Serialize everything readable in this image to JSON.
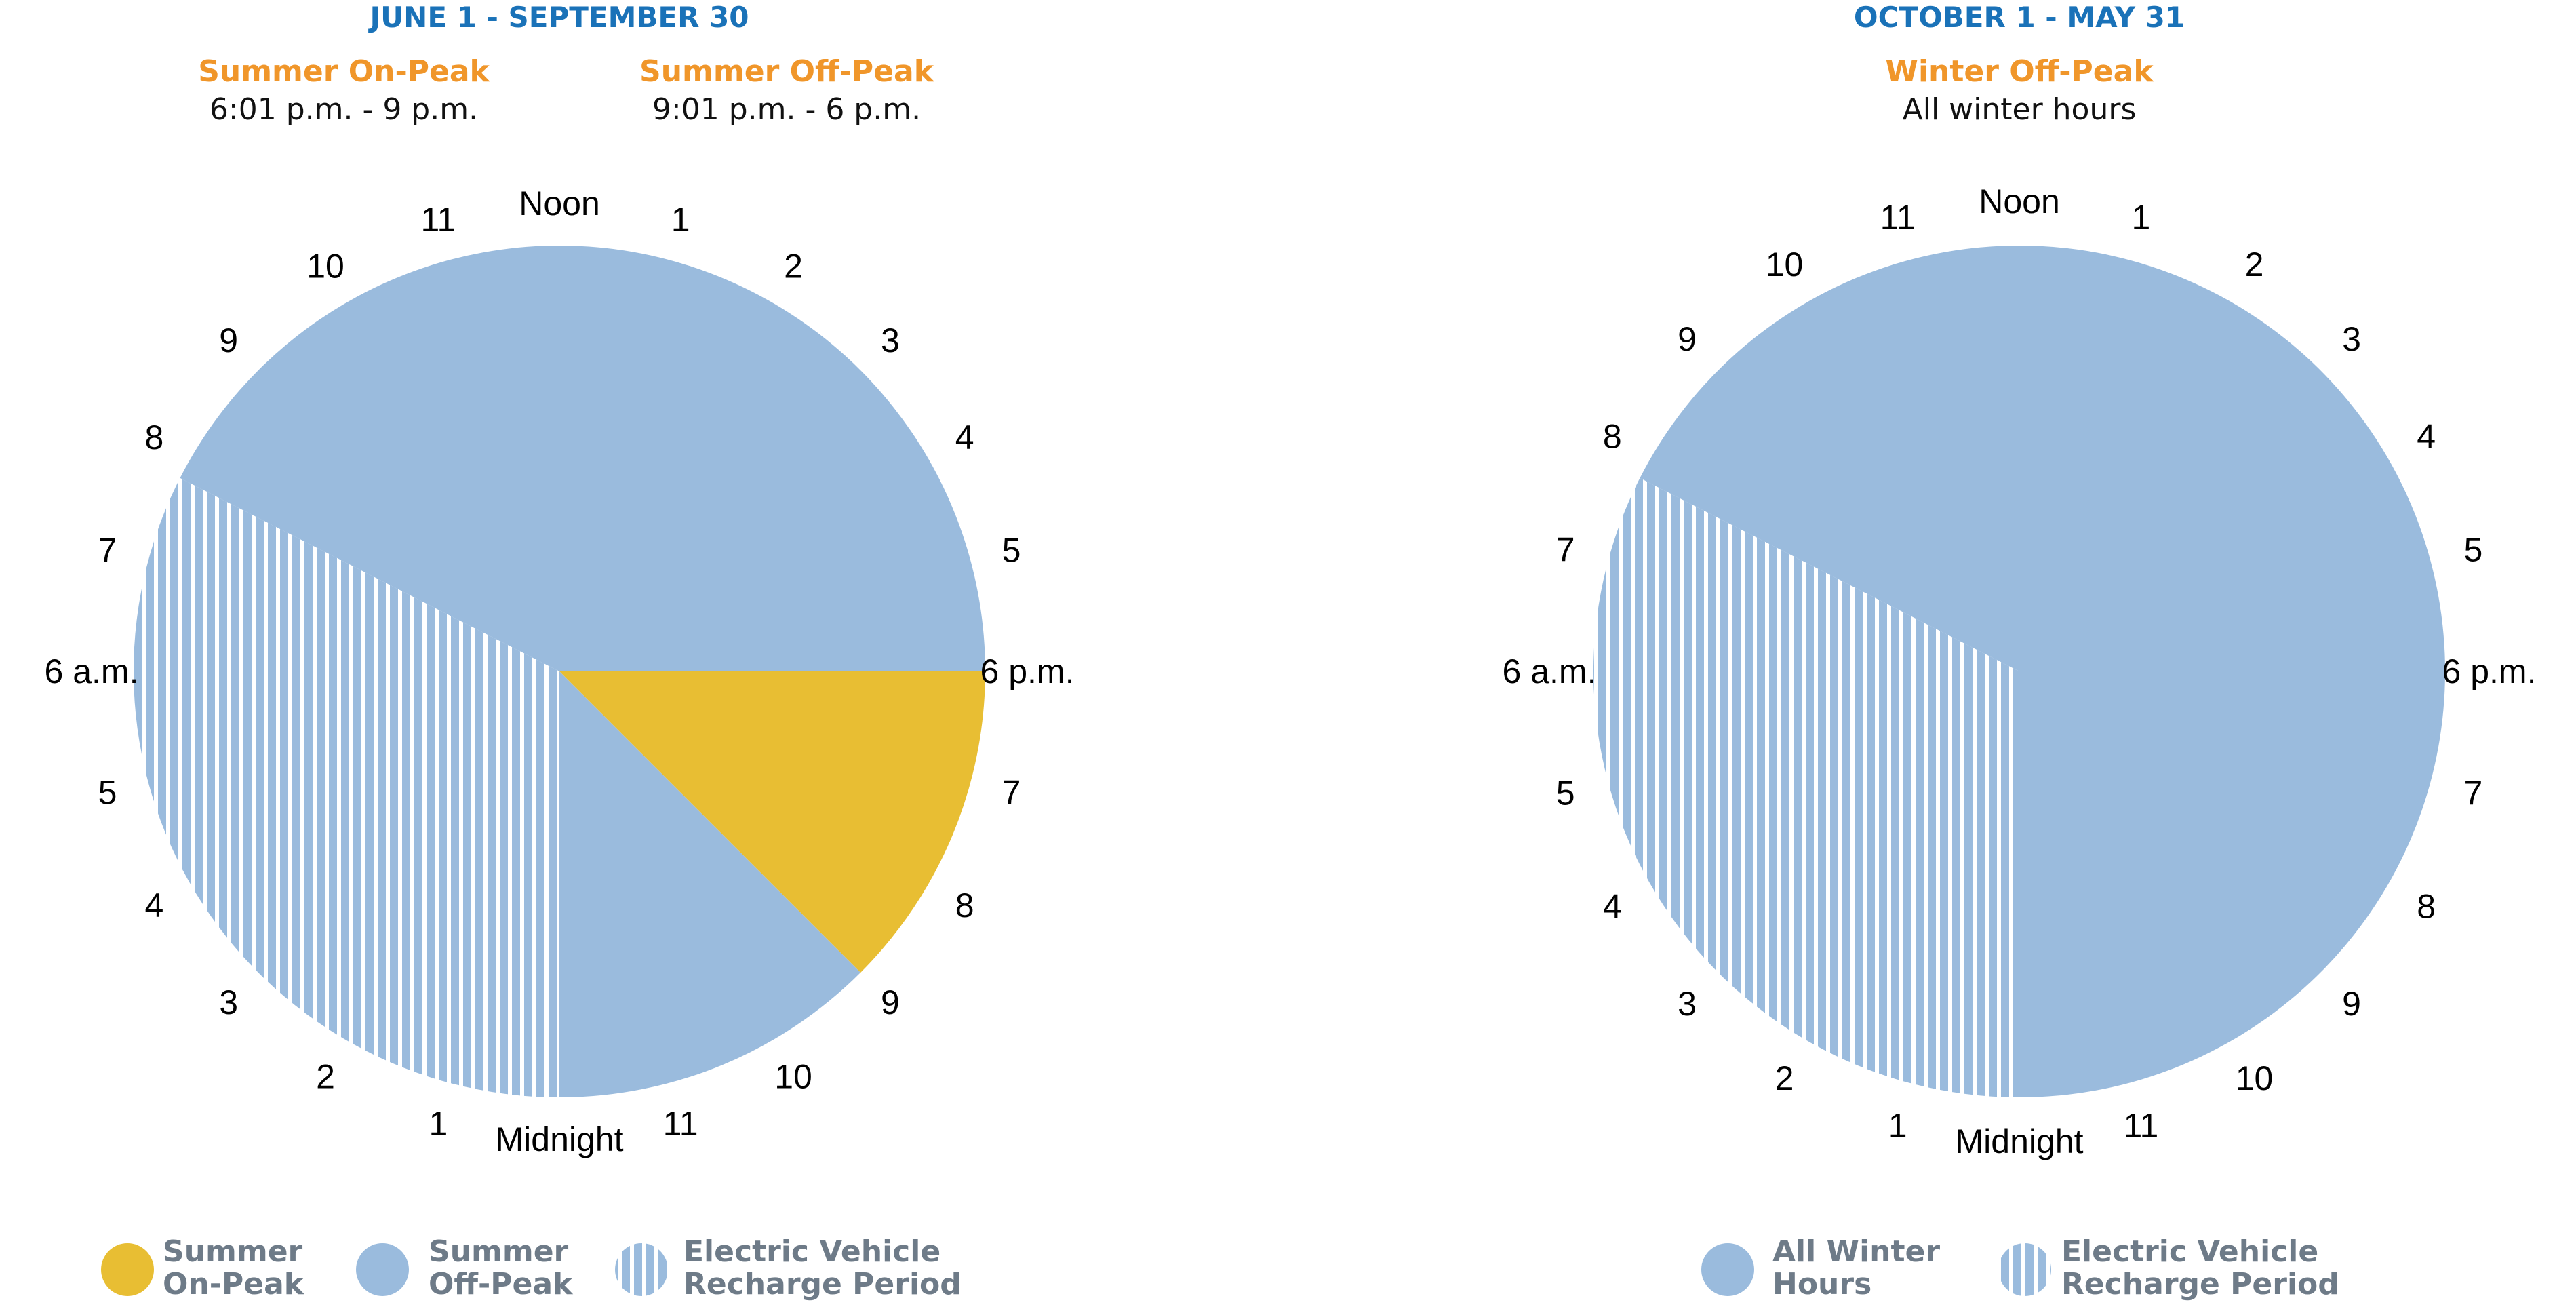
{
  "colors": {
    "on_peak": "#e8be33",
    "off_peak": "#9abbdd",
    "ev_stripe": "#ffffff",
    "season_title": "#1a72b8",
    "period_label": "#f0962a",
    "legend_text": "#6e7b88"
  },
  "clock_labels": [
    "Noon",
    "1",
    "2",
    "3",
    "4",
    "5",
    "6 p.m.",
    "7",
    "8",
    "9",
    "10",
    "11",
    "Midnight",
    "1",
    "2",
    "3",
    "4",
    "5",
    "6 a.m.",
    "7",
    "8",
    "9",
    "10",
    "11"
  ],
  "chart_data": [
    {
      "type": "pie",
      "title": "JUNE 1 - SEPTEMBER 30",
      "periods": [
        {
          "name": "Summer On-Peak",
          "hours": "6:01 p.m. - 9 p.m."
        },
        {
          "name": "Summer Off-Peak",
          "hours": "9:01 p.m. - 6 p.m."
        }
      ],
      "slices": [
        {
          "series": "Summer Off-Peak",
          "start_hour": 7.8,
          "end_hour": 18,
          "ev": false
        },
        {
          "series": "Summer On-Peak",
          "start_hour": 18,
          "end_hour": 21,
          "ev": false
        },
        {
          "series": "Summer Off-Peak",
          "start_hour": 21,
          "end_hour": 24,
          "ev": false
        },
        {
          "series": "Summer Off-Peak",
          "start_hour": 0,
          "end_hour": 7.8,
          "ev": true
        }
      ],
      "legend": [
        {
          "label_lines": [
            "Summer",
            "On-Peak"
          ],
          "swatch": "on_peak"
        },
        {
          "label_lines": [
            "Summer",
            "Off-Peak"
          ],
          "swatch": "off_peak"
        },
        {
          "label_lines": [
            "Electric Vehicle",
            "Recharge Period"
          ],
          "swatch": "ev"
        }
      ]
    },
    {
      "type": "pie",
      "title": "OCTOBER 1 - MAY 31",
      "periods": [
        {
          "name": "Winter Off-Peak",
          "hours": "All winter hours"
        }
      ],
      "slices": [
        {
          "series": "All Winter Hours",
          "start_hour": 7.8,
          "end_hour": 24,
          "ev": false
        },
        {
          "series": "All Winter Hours",
          "start_hour": 0,
          "end_hour": 7.8,
          "ev": true
        }
      ],
      "legend": [
        {
          "label_lines": [
            "All Winter",
            "Hours"
          ],
          "swatch": "off_peak"
        },
        {
          "label_lines": [
            "Electric Vehicle",
            "Recharge Period"
          ],
          "swatch": "ev"
        }
      ]
    }
  ]
}
